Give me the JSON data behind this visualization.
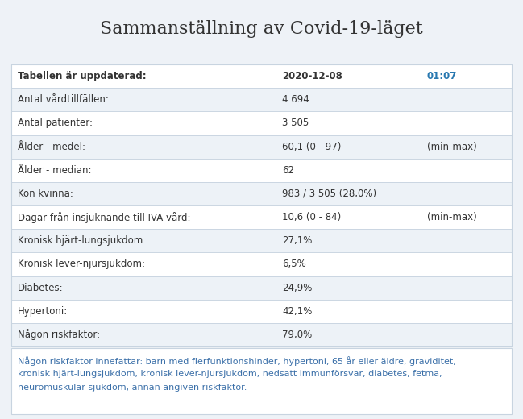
{
  "title": "Sammanställning av Covid-19-läget",
  "title_fontsize": 16,
  "background_color": "#eef2f7",
  "border_color": "#c8d4e0",
  "text_color": "#333333",
  "blue_color": "#2878b0",
  "rows": [
    {
      "label": "Tabellen är uppdaterad:",
      "value": "2020-12-08",
      "extra": "01:07",
      "extra_blue": true,
      "bold": true,
      "bg": "#ffffff"
    },
    {
      "label": "Antal vårdtillfällen:",
      "value": "4 694",
      "extra": "",
      "extra_blue": false,
      "bold": false,
      "bg": "#edf2f7"
    },
    {
      "label": "Antal patienter:",
      "value": "3 505",
      "extra": "",
      "extra_blue": false,
      "bold": false,
      "bg": "#ffffff"
    },
    {
      "label": "Ålder - medel:",
      "value": "60,1 (0 - 97)",
      "extra": "(min-max)",
      "extra_blue": false,
      "bold": false,
      "bg": "#edf2f7"
    },
    {
      "label": "Ålder - median:",
      "value": "62",
      "extra": "",
      "extra_blue": false,
      "bold": false,
      "bg": "#ffffff"
    },
    {
      "label": "Kön kvinna:",
      "value": "983 / 3 505 (28,0%)",
      "extra": "",
      "extra_blue": false,
      "bold": false,
      "bg": "#edf2f7"
    },
    {
      "label": "Dagar från insjuknande till IVA-vård:",
      "value": "10,6 (0 - 84)",
      "extra": "(min-max)",
      "extra_blue": false,
      "bold": false,
      "bg": "#ffffff"
    },
    {
      "label": "Kronisk hjärt-lungsjukdom:",
      "value": "27,1%",
      "extra": "",
      "extra_blue": false,
      "bold": false,
      "bg": "#edf2f7"
    },
    {
      "label": "Kronisk lever-njursjukdom:",
      "value": "6,5%",
      "extra": "",
      "extra_blue": false,
      "bold": false,
      "bg": "#ffffff"
    },
    {
      "label": "Diabetes:",
      "value": "24,9%",
      "extra": "",
      "extra_blue": false,
      "bold": false,
      "bg": "#edf2f7"
    },
    {
      "label": "Hypertoni:",
      "value": "42,1%",
      "extra": "",
      "extra_blue": false,
      "bold": false,
      "bg": "#ffffff"
    },
    {
      "label": "Någon riskfaktor:",
      "value": "79,0%",
      "extra": "",
      "extra_blue": false,
      "bold": false,
      "bg": "#edf2f7"
    }
  ],
  "footnote_line1": "Någon riskfaktor innefattar: barn med flerfunktionshinder, hypertoni, 65 år eller äldre, graviditet,",
  "footnote_line2": "kronisk hjärt-lungsjukdom, kronisk lever-njursjukdom, nedsatt immunförsvar, diabetes, fetma,",
  "footnote_line3": "neuromuskulär sjukdom, annan angiven riskfaktor.",
  "footnote_color": "#3a6fa8",
  "footnote_bg": "#ffffff"
}
